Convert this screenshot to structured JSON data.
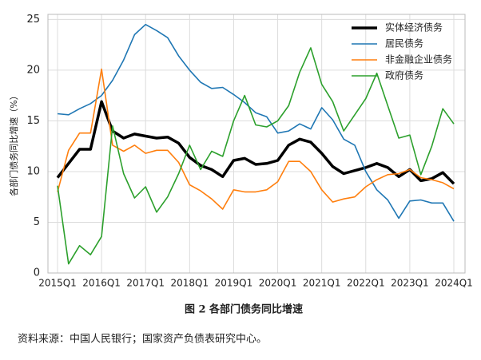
{
  "chart_data": {
    "type": "line",
    "y_label": "各部门债务同比增速（%）",
    "caption": "图 2 各部门债务同比增速",
    "source": "资料来源：中国人民银行；国家资产负债表研究中心。",
    "categories": [
      "2015Q1",
      null,
      null,
      null,
      "2016Q1",
      null,
      null,
      null,
      "2017Q1",
      null,
      null,
      null,
      "2018Q1",
      null,
      null,
      null,
      "2019Q1",
      null,
      null,
      null,
      "2020Q1",
      null,
      null,
      null,
      "2021Q1",
      null,
      null,
      null,
      "2022Q1",
      null,
      null,
      null,
      "2023Q1",
      null,
      null,
      null,
      "2024Q1"
    ],
    "series": [
      {
        "name": "实体经济债务",
        "color": "#000000",
        "width": 3.5,
        "values": [
          9.4,
          10.8,
          12.2,
          12.2,
          16.9,
          14.0,
          13.3,
          13.7,
          13.5,
          13.3,
          13.4,
          12.8,
          11.4,
          10.6,
          10.2,
          9.5,
          11.1,
          11.3,
          10.7,
          10.8,
          11.1,
          12.6,
          13.2,
          12.9,
          11.8,
          10.5,
          9.8,
          10.1,
          10.4,
          10.8,
          10.4,
          9.5,
          10.2,
          9.1,
          9.3,
          9.9,
          8.8
        ]
      },
      {
        "name": "居民债务",
        "color": "#1f77b4",
        "width": 1.6,
        "values": [
          15.7,
          15.6,
          16.2,
          16.7,
          17.5,
          19.0,
          21.0,
          23.5,
          24.5,
          23.9,
          23.2,
          21.4,
          20.0,
          18.8,
          18.2,
          18.3,
          17.6,
          16.8,
          15.8,
          15.4,
          13.8,
          14.0,
          14.7,
          14.2,
          16.3,
          15.1,
          13.2,
          12.6,
          10.0,
          8.2,
          7.2,
          5.4,
          7.1,
          7.2,
          6.9,
          6.9,
          5.1
        ]
      },
      {
        "name": "非金融企业债务",
        "color": "#ff7f0e",
        "width": 1.6,
        "values": [
          8.0,
          12.1,
          13.8,
          13.8,
          20.1,
          12.6,
          12.0,
          12.6,
          11.8,
          12.1,
          12.1,
          10.9,
          8.7,
          8.1,
          7.3,
          6.3,
          8.2,
          8.0,
          8.0,
          8.2,
          9.0,
          11.0,
          11.0,
          10.0,
          8.2,
          7.0,
          7.3,
          7.5,
          8.5,
          9.2,
          9.7,
          9.8,
          10.2,
          9.4,
          9.2,
          8.9,
          8.3
        ]
      },
      {
        "name": "政府债务",
        "color": "#2ca02c",
        "width": 1.6,
        "values": [
          8.6,
          0.9,
          2.7,
          1.8,
          3.6,
          14.5,
          9.8,
          7.4,
          8.5,
          6.0,
          7.5,
          9.8,
          12.6,
          10.2,
          12.0,
          11.5,
          15.0,
          17.5,
          14.6,
          14.4,
          15.0,
          16.5,
          19.8,
          22.2,
          18.6,
          16.9,
          14.0,
          15.6,
          17.2,
          19.7,
          16.5,
          13.3,
          13.6,
          9.7,
          12.5,
          16.2,
          14.7
        ]
      }
    ],
    "ylim": [
      0,
      25.5
    ],
    "yticks": [
      0,
      5,
      10,
      15,
      20,
      25
    ],
    "grid": true,
    "legend": "upper right"
  }
}
